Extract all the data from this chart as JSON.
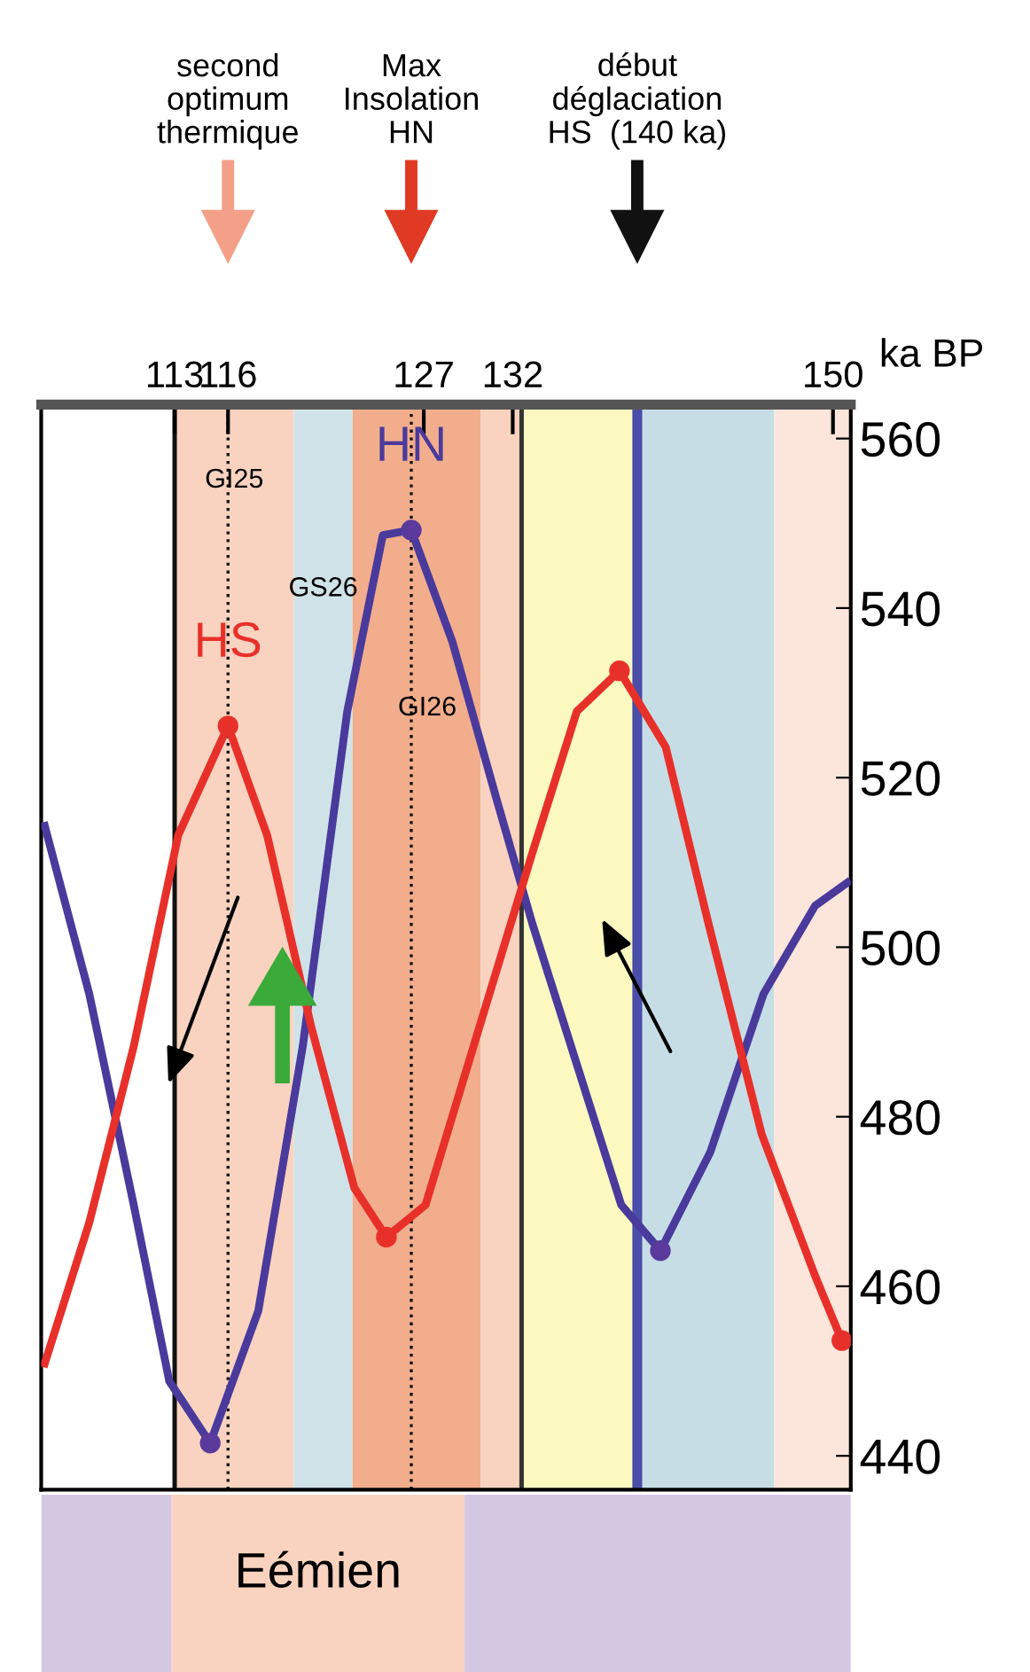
{
  "chart_data": {
    "type": "line",
    "xlabel": "ka BP",
    "xlim": [
      105.5,
      151
    ],
    "xticks": [
      113,
      116,
      127,
      132,
      150
    ],
    "ylim": [
      436,
      564
    ],
    "yticks": [
      440,
      460,
      480,
      500,
      520,
      540,
      560
    ],
    "grid": false,
    "legend": false,
    "marker": "none",
    "line_style": "solid",
    "series": [
      {
        "name": "HN",
        "color": "#4a3a9c",
        "x": [
          105.7,
          108.2,
          110.7,
          112.7,
          115.0,
          117.7,
          120.2,
          122.7,
          124.7,
          126.3,
          128.6,
          131.1,
          133.1,
          135.6,
          138.1,
          140.3,
          143.1,
          146.1,
          149.0,
          150.8
        ],
        "values": [
          514.3,
          494.5,
          469.6,
          448.8,
          441.5,
          457.1,
          488.3,
          527.8,
          548.6,
          549.2,
          536.1,
          517.4,
          502.8,
          486.2,
          469.6,
          464.2,
          475.8,
          494.5,
          504.9,
          507.6
        ]
      },
      {
        "name": "HS",
        "color": "#e8302a",
        "x": [
          105.7,
          108.2,
          110.7,
          113.2,
          116.0,
          118.2,
          120.7,
          123.1,
          124.9,
          127.1,
          130.1,
          133.1,
          135.6,
          138.0,
          140.6,
          143.0,
          146.0,
          149.0,
          150.5
        ],
        "values": [
          450.9,
          467.5,
          488.3,
          513.2,
          526.1,
          513.2,
          490.4,
          471.6,
          465.8,
          469.6,
          490.4,
          511.1,
          527.8,
          532.6,
          523.6,
          502.8,
          477.9,
          461.2,
          453.6
        ]
      },
      {
        "type": "scatter",
        "marker": "circle",
        "color": "#5a3a9c",
        "x": [
          115.0,
          126.3,
          140.3
        ],
        "values": [
          441.5,
          549.2,
          464.2
        ]
      },
      {
        "type": "scatter",
        "marker": "circle",
        "color": "#e8302a",
        "x": [
          116.0,
          124.9,
          138.0,
          150.5
        ],
        "values": [
          526.1,
          465.8,
          532.6,
          453.6
        ]
      }
    ],
    "bands": [
      {
        "axis": "x",
        "from": 113,
        "to": 119.7,
        "color": "#f9d3bf"
      },
      {
        "axis": "x",
        "from": 119.7,
        "to": 123,
        "color": "#cfe2e8"
      },
      {
        "axis": "x",
        "from": 123,
        "to": 130.2,
        "color": "#f2ad8c"
      },
      {
        "axis": "x",
        "from": 130.2,
        "to": 132.5,
        "color": "#f9d3bf"
      },
      {
        "axis": "x",
        "from": 132.5,
        "to": 138.8,
        "color": "#fbf8c0"
      },
      {
        "axis": "x",
        "from": 139.2,
        "to": 146.7,
        "color": "#c6dde6"
      },
      {
        "axis": "x",
        "from": 146.7,
        "to": 151,
        "color": "#fce5da"
      }
    ],
    "ref_lines": [
      {
        "axis": "x",
        "value": 116.0,
        "color": "#111111",
        "line_style": "dotted"
      },
      {
        "axis": "x",
        "value": 126.3,
        "color": "#111111",
        "line_style": "dotted"
      },
      {
        "axis": "x",
        "value": 139.0,
        "color": "#4a4ea8",
        "line_style": "solid"
      },
      {
        "axis": "x",
        "value": 113,
        "color": "#111111",
        "line_style": "solid"
      },
      {
        "axis": "x",
        "value": 132.5,
        "color": "#333333",
        "line_style": "solid"
      }
    ],
    "annotations": [
      "second\noptimum\nthermique",
      "Max\nInsolation\nHN",
      "début\ndéglaciation\nHS  (140 ka)",
      "GI25",
      "GS26",
      "GI26",
      "Eémien"
    ]
  }
}
